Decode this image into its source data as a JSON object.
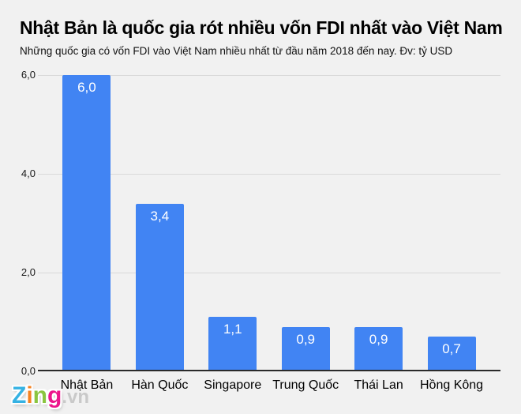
{
  "header": {
    "title": "Nhật Bản là quốc gia rót nhiều vốn FDI nhất vào Việt Nam",
    "subtitle": "Những quốc gia có vốn FDI vào Việt Nam nhiều nhất từ đầu năm 2018 đến nay. Đv: tỷ USD"
  },
  "chart_data": {
    "type": "bar",
    "title": "Nhật Bản là quốc gia rót nhiều vốn FDI nhất vào Việt Nam",
    "subtitle": "Những quốc gia có vốn FDI vào Việt Nam nhiều nhất từ đầu năm 2018 đến nay. Đv: tỷ USD",
    "unit": "tỷ USD",
    "categories": [
      "Nhật Bản",
      "Hàn Quốc",
      "Singapore",
      "Trung Quốc",
      "Thái Lan",
      "Hồng Kông"
    ],
    "values": [
      6.0,
      3.4,
      1.1,
      0.9,
      0.9,
      0.7
    ],
    "value_labels": [
      "6,0",
      "3,4",
      "1,1",
      "0,9",
      "0,9",
      "0,7"
    ],
    "ylim": [
      0,
      6
    ],
    "yticks": [
      0,
      2,
      4,
      6
    ],
    "ytick_labels": [
      "0,0",
      "2,0",
      "4,0",
      "6,0"
    ],
    "xlabel": "",
    "ylabel": "",
    "grid": true,
    "legend": false,
    "colors": {
      "bar": "#4184f3",
      "gridline": "#d9d9d9",
      "axis_line": "#2b2b2b",
      "value_label": "#ffffff",
      "background": "#f1f1f1"
    }
  },
  "watermark": {
    "text": "Zing.vn",
    "letters": [
      {
        "ch": "Z",
        "color": "#35b2e3"
      },
      {
        "ch": "i",
        "color": "#f58220"
      },
      {
        "ch": "n",
        "color": "#8bc540"
      },
      {
        "ch": "g",
        "color": "#ec168c"
      }
    ],
    "suffix": ".vn",
    "suffix_color": "#c9c9c9"
  }
}
